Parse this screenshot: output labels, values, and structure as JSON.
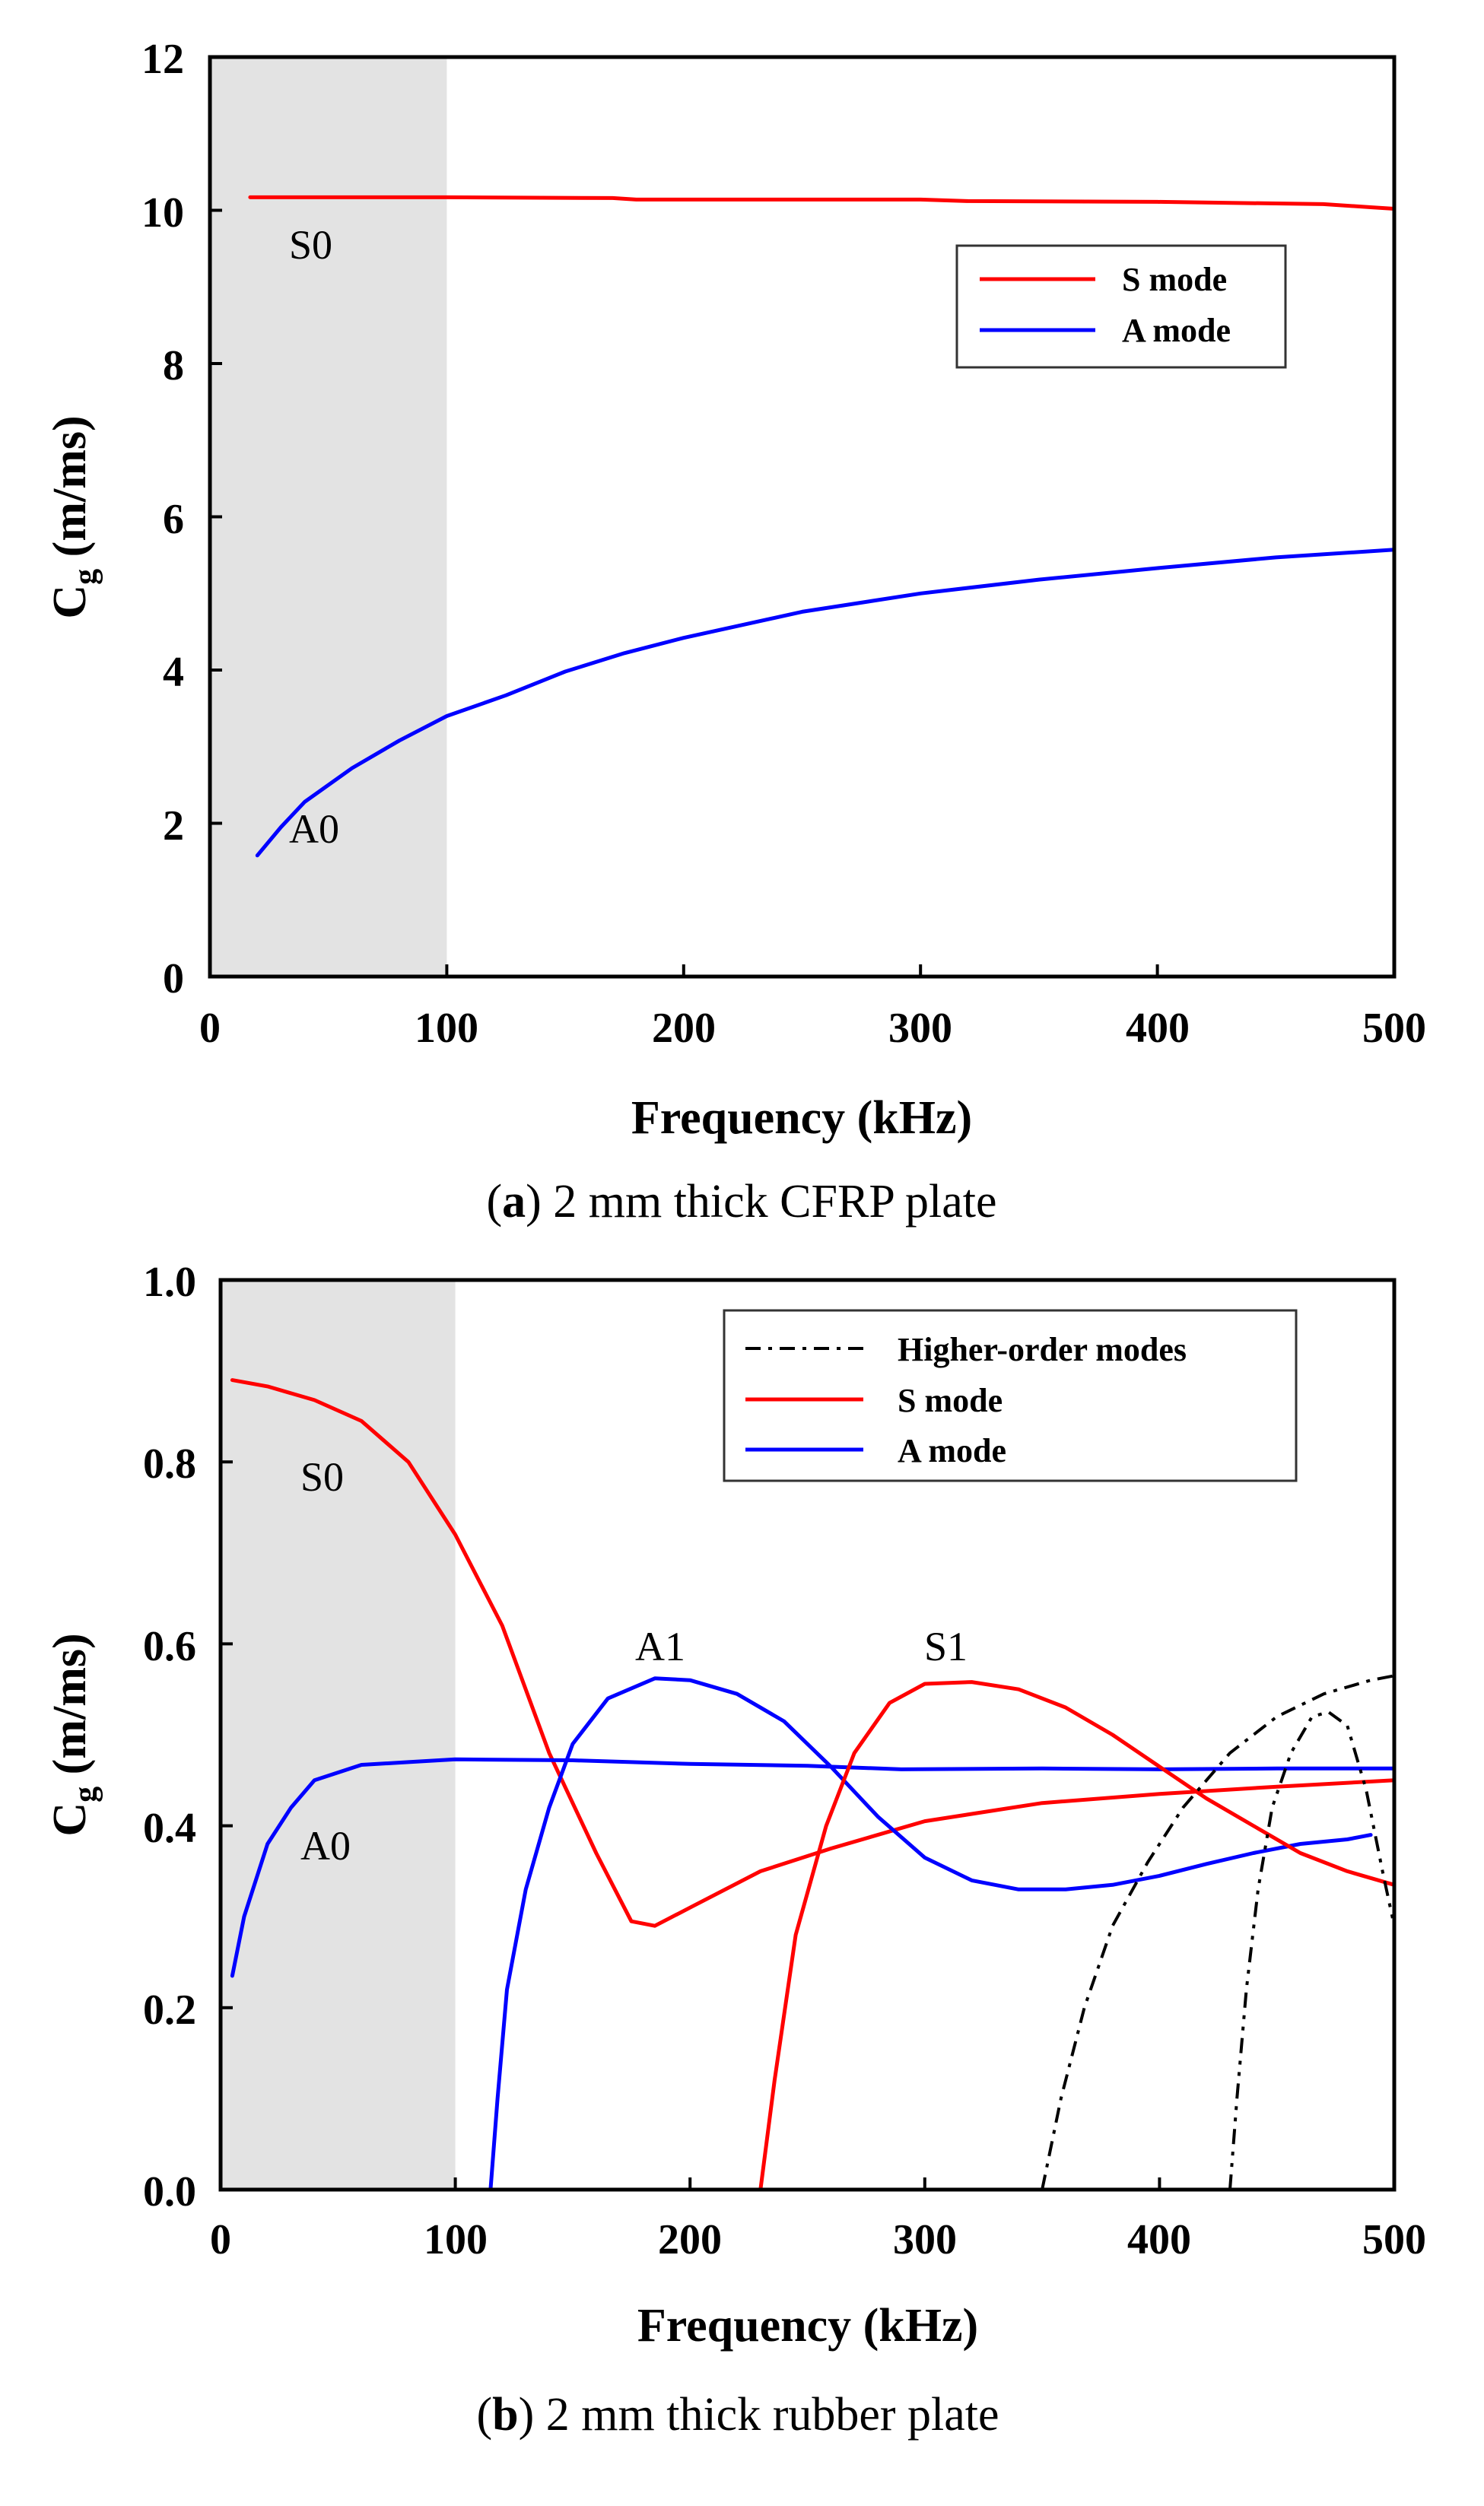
{
  "colors": {
    "s_mode": "#ff0000",
    "a_mode": "#0000ff",
    "higher_order": "#000000",
    "shade": "#e3e3e3"
  },
  "chart_data": [
    {
      "type": "line",
      "caption": {
        "letter": "a",
        "text": ") 2 mm thick CFRP plate",
        "open": "("
      },
      "xlabel": "Frequency (kHz)",
      "ylabel": {
        "main": "C",
        "sub": "g",
        "unit": " (m/ms)"
      },
      "xlim": [
        0,
        500
      ],
      "ylim": [
        0,
        12
      ],
      "xticks": [
        0,
        100,
        200,
        300,
        400,
        500
      ],
      "yticks": [
        0,
        2,
        4,
        6,
        8,
        10,
        12
      ],
      "ytick_labels": [
        "0",
        "2",
        "4",
        "6",
        "8",
        "10",
        "12"
      ],
      "shaded_region": [
        0,
        100
      ],
      "legend": [
        "S mode",
        "A mode"
      ],
      "annotations": [
        {
          "text": "S0",
          "x": 45,
          "y": 9.6
        },
        {
          "text": "A0",
          "x": 45,
          "y": 1.7
        }
      ],
      "series": [
        {
          "name": "S mode",
          "color_key": "s_mode",
          "dash": "",
          "points": [
            [
              17,
              10.17
            ],
            [
              50,
              10.17
            ],
            [
              100,
              10.17
            ],
            [
              170,
              10.16
            ],
            [
              180,
              10.14
            ],
            [
              250,
              10.14
            ],
            [
              300,
              10.14
            ],
            [
              320,
              10.12
            ],
            [
              400,
              10.11
            ],
            [
              470,
              10.08
            ],
            [
              490,
              10.04
            ],
            [
              500,
              10.02
            ]
          ]
        },
        {
          "name": "A mode",
          "color_key": "a_mode",
          "dash": "",
          "points": [
            [
              20,
              1.58
            ],
            [
              30,
              1.95
            ],
            [
              40,
              2.28
            ],
            [
              60,
              2.72
            ],
            [
              80,
              3.08
            ],
            [
              100,
              3.4
            ],
            [
              125,
              3.67
            ],
            [
              150,
              3.98
            ],
            [
              175,
              4.22
            ],
            [
              200,
              4.42
            ],
            [
              250,
              4.76
            ],
            [
              300,
              5.0
            ],
            [
              350,
              5.18
            ],
            [
              400,
              5.33
            ],
            [
              450,
              5.47
            ],
            [
              500,
              5.57
            ]
          ]
        }
      ]
    },
    {
      "type": "line",
      "caption": {
        "letter": "b",
        "text": ") 2 mm thick rubber plate",
        "open": "("
      },
      "xlabel": "Frequency (kHz)",
      "ylabel": {
        "main": "C",
        "sub": "g",
        "unit": " (m/ms)"
      },
      "xlim": [
        0,
        500
      ],
      "ylim": [
        0,
        1.0
      ],
      "xticks": [
        0,
        100,
        200,
        300,
        400,
        500
      ],
      "yticks": [
        0,
        0.2,
        0.4,
        0.6,
        0.8,
        1.0
      ],
      "ytick_labels": [
        "0.0",
        "0.2",
        "0.4",
        "0.6",
        "0.8",
        "1.0"
      ],
      "shaded_region": [
        0,
        100
      ],
      "legend": [
        "Higher-order modes",
        "S mode",
        "A mode"
      ],
      "annotations": [
        {
          "text": "S0",
          "x": 48,
          "y": 0.77
        },
        {
          "text": "A0",
          "x": 50,
          "y": 0.365
        },
        {
          "text": "A1",
          "x": 190,
          "y": 0.585
        },
        {
          "text": "S1",
          "x": 318,
          "y": 0.585
        }
      ],
      "series": [
        {
          "name": "S0",
          "color_key": "s_mode",
          "dash": "",
          "points": [
            [
              5,
              0.89
            ],
            [
              20,
              0.883
            ],
            [
              40,
              0.868
            ],
            [
              60,
              0.845
            ],
            [
              80,
              0.8
            ],
            [
              100,
              0.72
            ],
            [
              120,
              0.62
            ],
            [
              140,
              0.48
            ],
            [
              160,
              0.37
            ],
            [
              175,
              0.295
            ],
            [
              185,
              0.29
            ],
            [
              200,
              0.31
            ],
            [
              230,
              0.35
            ],
            [
              260,
              0.375
            ],
            [
              300,
              0.405
            ],
            [
              350,
              0.425
            ],
            [
              400,
              0.435
            ],
            [
              450,
              0.443
            ],
            [
              500,
              0.45
            ]
          ]
        },
        {
          "name": "A0",
          "color_key": "a_mode",
          "dash": "",
          "points": [
            [
              5,
              0.235
            ],
            [
              10,
              0.3
            ],
            [
              20,
              0.38
            ],
            [
              30,
              0.42
            ],
            [
              40,
              0.45
            ],
            [
              60,
              0.467
            ],
            [
              80,
              0.47
            ],
            [
              100,
              0.473
            ],
            [
              150,
              0.472
            ],
            [
              200,
              0.468
            ],
            [
              250,
              0.466
            ],
            [
              290,
              0.462
            ],
            [
              350,
              0.463
            ],
            [
              400,
              0.462
            ],
            [
              450,
              0.463
            ],
            [
              500,
              0.463
            ]
          ]
        },
        {
          "name": "A1",
          "color_key": "a_mode",
          "dash": "",
          "points": [
            [
              115,
              0.0
            ],
            [
              118,
              0.1
            ],
            [
              122,
              0.22
            ],
            [
              130,
              0.33
            ],
            [
              140,
              0.42
            ],
            [
              150,
              0.49
            ],
            [
              165,
              0.54
            ],
            [
              185,
              0.562
            ],
            [
              200,
              0.56
            ],
            [
              220,
              0.545
            ],
            [
              240,
              0.515
            ],
            [
              260,
              0.465
            ],
            [
              280,
              0.41
            ],
            [
              300,
              0.365
            ],
            [
              320,
              0.34
            ],
            [
              340,
              0.33
            ],
            [
              360,
              0.33
            ],
            [
              380,
              0.335
            ],
            [
              400,
              0.345
            ],
            [
              420,
              0.358
            ],
            [
              440,
              0.37
            ],
            [
              460,
              0.38
            ],
            [
              480,
              0.385
            ],
            [
              490,
              0.39
            ]
          ]
        },
        {
          "name": "S1",
          "color_key": "s_mode",
          "dash": "",
          "points": [
            [
              230,
              0.0
            ],
            [
              236,
              0.12
            ],
            [
              245,
              0.28
            ],
            [
              258,
              0.4
            ],
            [
              270,
              0.48
            ],
            [
              285,
              0.535
            ],
            [
              300,
              0.556
            ],
            [
              320,
              0.558
            ],
            [
              340,
              0.55
            ],
            [
              360,
              0.53
            ],
            [
              380,
              0.5
            ],
            [
              400,
              0.465
            ],
            [
              420,
              0.43
            ],
            [
              440,
              0.4
            ],
            [
              460,
              0.37
            ],
            [
              480,
              0.35
            ],
            [
              500,
              0.335
            ]
          ]
        },
        {
          "name": "Higher-order 1",
          "color_key": "higher_order",
          "dash": "20,10,5,10",
          "points": [
            [
              350,
              0.0
            ],
            [
              358,
              0.1
            ],
            [
              368,
              0.2
            ],
            [
              380,
              0.29
            ],
            [
              395,
              0.36
            ],
            [
              410,
              0.42
            ],
            [
              430,
              0.48
            ],
            [
              450,
              0.52
            ],
            [
              470,
              0.545
            ],
            [
              490,
              0.56
            ],
            [
              500,
              0.565
            ]
          ]
        },
        {
          "name": "Higher-order 2",
          "color_key": "higher_order",
          "dash": "20,10,5,10,5,10",
          "points": [
            [
              430,
              0.0
            ],
            [
              433,
              0.1
            ],
            [
              437,
              0.22
            ],
            [
              442,
              0.33
            ],
            [
              448,
              0.42
            ],
            [
              456,
              0.48
            ],
            [
              465,
              0.52
            ],
            [
              472,
              0.525
            ],
            [
              480,
              0.51
            ],
            [
              488,
              0.44
            ],
            [
              495,
              0.35
            ],
            [
              500,
              0.29
            ]
          ]
        }
      ]
    }
  ]
}
